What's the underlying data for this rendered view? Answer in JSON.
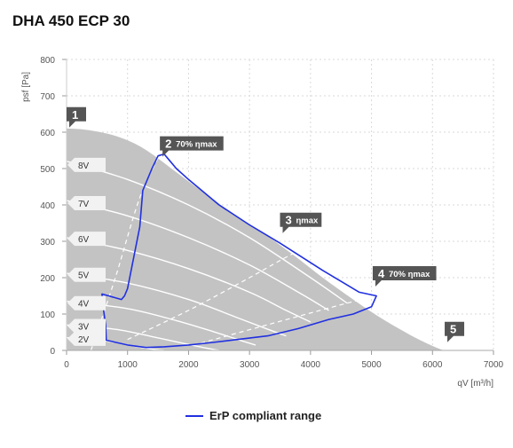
{
  "chart_data": {
    "type": "line",
    "title": "DHA 450 ECP 30",
    "xlabel": "qV [m³/h]",
    "ylabel": "psf [Pa]",
    "xlim": [
      0,
      7000
    ],
    "ylim": [
      0,
      800
    ],
    "x_ticks": [
      "0",
      "1000",
      "2000",
      "3000",
      "4000",
      "5000",
      "6000",
      "7000"
    ],
    "y_ticks": [
      "0",
      "100",
      "200",
      "300",
      "400",
      "500",
      "600",
      "700",
      "800"
    ],
    "grid": true,
    "legend_position": "bottom-center",
    "legend": [
      {
        "label": "ErP compliant range",
        "color": "#2030e0"
      }
    ],
    "envelope": {
      "x": [
        0,
        250,
        500,
        800,
        1100,
        1400,
        1800,
        2200,
        2700,
        3200,
        3700,
        4200,
        4700,
        5100,
        5500,
        5800,
        6100,
        6200
      ],
      "y": [
        610,
        608,
        602,
        590,
        570,
        540,
        490,
        440,
        380,
        325,
        265,
        200,
        140,
        95,
        55,
        28,
        5,
        0
      ],
      "color": "#c3c3c3"
    },
    "voltage_curves": [
      {
        "label": "8V",
        "label_y": 510,
        "x": [
          0,
          1000,
          2000,
          3000,
          4000,
          4600
        ],
        "y": [
          520,
          470,
          400,
          310,
          200,
          130
        ]
      },
      {
        "label": "7V",
        "label_y": 405,
        "x": [
          0,
          1000,
          2000,
          3000,
          3800,
          4300
        ],
        "y": [
          412,
          370,
          310,
          235,
          160,
          110
        ]
      },
      {
        "label": "6V",
        "label_y": 307,
        "x": [
          0,
          1000,
          2000,
          3000,
          3600,
          4000
        ],
        "y": [
          310,
          275,
          225,
          160,
          110,
          78
        ]
      },
      {
        "label": "5V",
        "label_y": 208,
        "x": [
          0,
          1000,
          2000,
          2800,
          3300,
          3600
        ],
        "y": [
          212,
          185,
          140,
          90,
          58,
          40
        ]
      },
      {
        "label": "4V",
        "label_y": 130,
        "x": [
          0,
          1000,
          1800,
          2400,
          2900,
          3100
        ],
        "y": [
          135,
          115,
          82,
          52,
          25,
          15
        ]
      },
      {
        "label": "3V",
        "label_y": 67,
        "x": [
          0,
          800,
          1400,
          1900,
          2300,
          2500
        ],
        "y": [
          70,
          58,
          38,
          20,
          6,
          0
        ]
      },
      {
        "label": "2V",
        "label_y": 32,
        "x": [
          0,
          600,
          1000,
          1350,
          1600
        ],
        "y": [
          35,
          27,
          15,
          5,
          0
        ]
      }
    ],
    "efficiency_lines": [
      {
        "x": [
          400,
          800,
          1200,
          1550
        ],
        "y": [
          0,
          200,
          420,
          545
        ]
      },
      {
        "x": [
          1000,
          2000,
          3000,
          3700,
          4200
        ],
        "y": [
          30,
          110,
          200,
          265,
          300
        ]
      },
      {
        "x": [
          2200,
          3500,
          4600,
          5100
        ],
        "y": [
          20,
          80,
          130,
          150
        ]
      }
    ],
    "erp_range": {
      "color": "#2030e0",
      "x": [
        900,
        950,
        1000,
        1200,
        1250,
        1350,
        1400,
        1500,
        1600,
        1700,
        1800,
        2000,
        2500,
        3000,
        3500,
        4200,
        4800,
        5080,
        5000,
        4700,
        4300,
        3800,
        3300,
        2800,
        2400,
        2000,
        1600,
        1300,
        1000,
        650,
        640,
        600,
        580
      ],
      "y": [
        140,
        150,
        170,
        340,
        440,
        480,
        500,
        535,
        540,
        520,
        500,
        470,
        400,
        345,
        295,
        220,
        160,
        150,
        120,
        100,
        85,
        60,
        40,
        30,
        22,
        15,
        10,
        8,
        15,
        28,
        70,
        120,
        155
      ]
    },
    "point_labels": [
      {
        "num": "1",
        "text": "",
        "x": 0,
        "y": 620,
        "anchor": "left"
      },
      {
        "num": "2",
        "text": "70% ηmax",
        "x": 1530,
        "y": 540,
        "anchor": "left"
      },
      {
        "num": "3",
        "text": "ηmax",
        "x": 3500,
        "y": 330,
        "anchor": "left"
      },
      {
        "num": "4",
        "text": "70% ηmax",
        "x": 5020,
        "y": 183,
        "anchor": "left"
      },
      {
        "num": "5",
        "text": "",
        "x": 6200,
        "y": 30,
        "anchor": "left"
      }
    ]
  }
}
